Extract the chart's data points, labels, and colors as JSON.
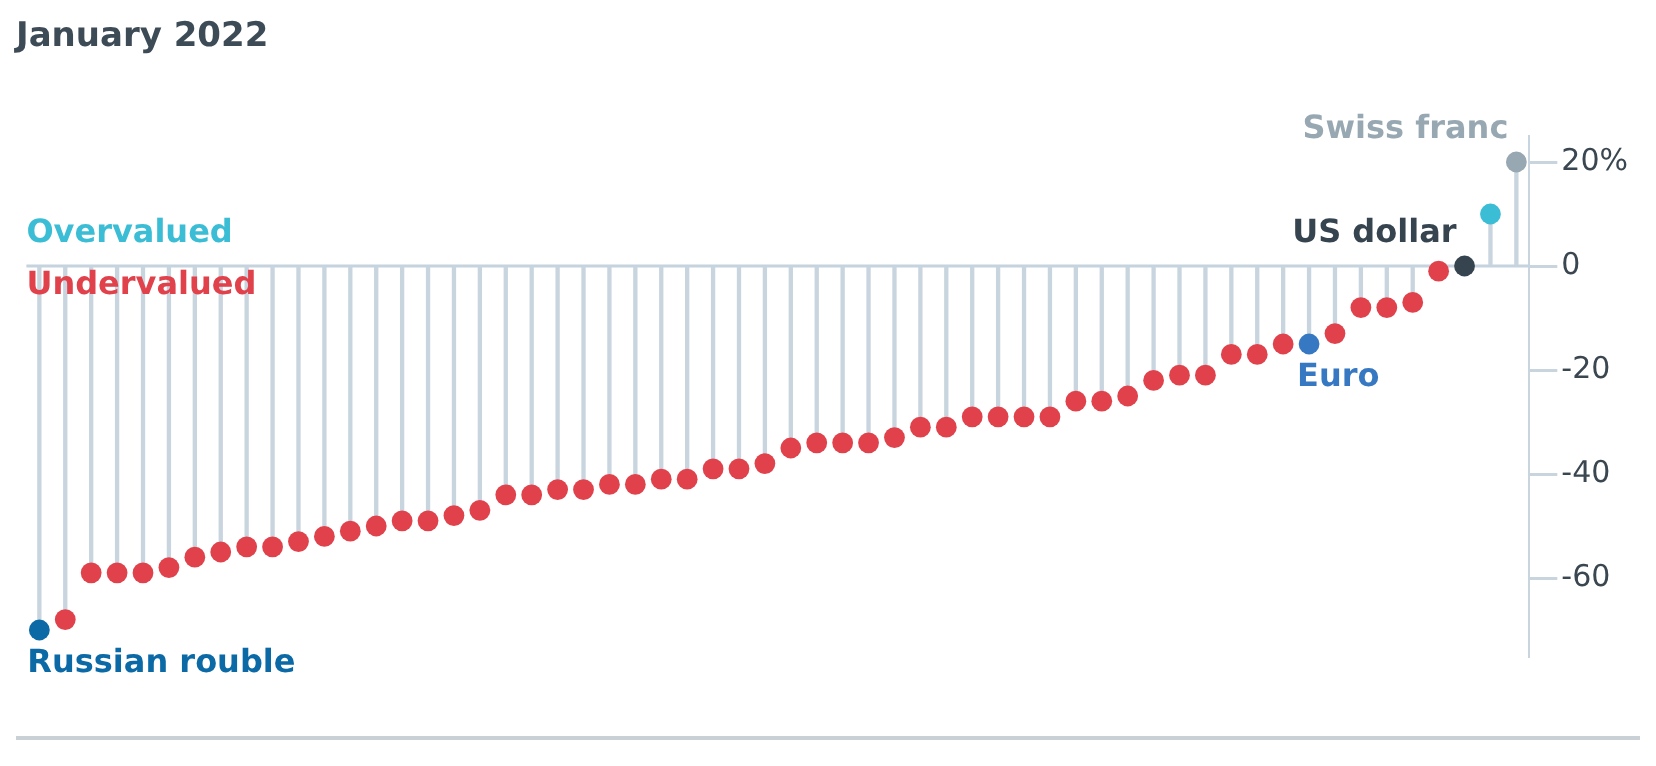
{
  "chart_data": {
    "type": "lollipop",
    "title": "January 2022",
    "categories": [
      null,
      null,
      null,
      null,
      null,
      null,
      null,
      null,
      null,
      null,
      null,
      null,
      null,
      null,
      null,
      null,
      null,
      null,
      null,
      null,
      null,
      null,
      null,
      null,
      null,
      null,
      null,
      null,
      null,
      null,
      null,
      null,
      null,
      null,
      null,
      null,
      null,
      null,
      null,
      null,
      null,
      null,
      null,
      null,
      null,
      null,
      null,
      null,
      null,
      null,
      null,
      null,
      null,
      null,
      null,
      null,
      null,
      null
    ],
    "annotations": [
      "Russian rouble",
      "Euro",
      "US dollar",
      "Swiss franc"
    ],
    "series": [
      {
        "name": "Overvalued",
        "color": "#3bbdd5",
        "values": [
          null,
          null,
          null,
          null,
          null,
          null,
          null,
          null,
          null,
          null,
          null,
          null,
          null,
          null,
          null,
          null,
          null,
          null,
          null,
          null,
          null,
          null,
          null,
          null,
          null,
          null,
          null,
          null,
          null,
          null,
          null,
          null,
          null,
          null,
          null,
          null,
          null,
          null,
          null,
          null,
          null,
          null,
          null,
          null,
          null,
          null,
          null,
          null,
          null,
          null,
          null,
          null,
          null,
          null,
          null,
          null,
          10,
          null
        ]
      },
      {
        "name": "Undervalued",
        "color": "#e0414b",
        "values": [
          null,
          -68,
          -59,
          -59,
          -59,
          -58,
          -56,
          -55,
          -54,
          -54,
          -53,
          -52,
          -51,
          -50,
          -49,
          -49,
          -48,
          -47,
          -44,
          -44,
          -43,
          -43,
          -42,
          -42,
          -41,
          -41,
          -39,
          -39,
          -38,
          -35,
          -34,
          -34,
          -34,
          -33,
          -31,
          -31,
          -29,
          -29,
          -29,
          -29,
          -26,
          -26,
          -25,
          -22,
          -21,
          -21,
          -17,
          -17,
          -15,
          null,
          -13,
          -8,
          -8,
          -7,
          -1,
          null,
          null,
          null
        ]
      },
      {
        "colors": [
          "#0b6aa6",
          null,
          null,
          null,
          null,
          null,
          null,
          null,
          null,
          null,
          null,
          null,
          null,
          null,
          null,
          null,
          null,
          null,
          null,
          null,
          null,
          null,
          null,
          null,
          null,
          null,
          null,
          null,
          null,
          null,
          null,
          null,
          null,
          null,
          null,
          null,
          null,
          null,
          null,
          null,
          null,
          null,
          null,
          null,
          null,
          null,
          null,
          null,
          null,
          "#3778c2",
          null,
          null,
          null,
          null,
          null,
          "#36444f",
          null,
          "#98a8b3"
        ],
        "values": [
          -70,
          null,
          null,
          null,
          null,
          null,
          null,
          null,
          null,
          null,
          null,
          null,
          null,
          null,
          null,
          null,
          null,
          null,
          null,
          null,
          null,
          null,
          null,
          null,
          null,
          null,
          null,
          null,
          null,
          null,
          null,
          null,
          null,
          null,
          null,
          null,
          null,
          null,
          null,
          null,
          null,
          null,
          null,
          null,
          null,
          null,
          null,
          null,
          null,
          -15,
          null,
          null,
          null,
          null,
          null,
          0,
          null,
          20
        ]
      }
    ],
    "ylim": [
      -75,
      25
    ],
    "yticks": [
      {
        "value": 20,
        "label": "20%"
      },
      0,
      -20,
      -40,
      -60
    ],
    "tick_labels": "y",
    "legend": "top left",
    "marker": "circle",
    "ref_lines": [
      {
        "axis": "y",
        "value": 0,
        "color": "#c5d3de"
      }
    ]
  }
}
